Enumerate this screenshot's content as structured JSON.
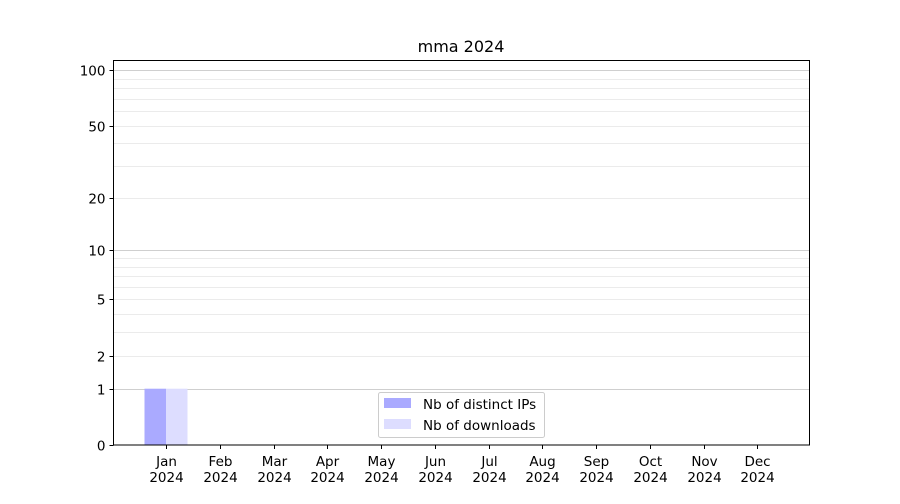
{
  "chart_data": {
    "type": "bar",
    "title": "mma 2024",
    "xlabel": "",
    "ylabel": "",
    "yscale": "log(1+y)",
    "ylim": [
      0,
      113
    ],
    "yticks": [
      0,
      1,
      2,
      5,
      10,
      20,
      50,
      100
    ],
    "ytick_labels": [
      "0",
      "1",
      "2",
      "5",
      "10",
      "20",
      "50",
      "100"
    ],
    "grid": true,
    "legend_position": "lower-center",
    "categories": [
      "Jan\n2024",
      "Feb\n2024",
      "Mar\n2024",
      "Apr\n2024",
      "May\n2024",
      "Jun\n2024",
      "Jul\n2024",
      "Aug\n2024",
      "Sep\n2024",
      "Oct\n2024",
      "Nov\n2024",
      "Dec\n2024"
    ],
    "category_labels": [
      [
        "Jan",
        "2024"
      ],
      [
        "Feb",
        "2024"
      ],
      [
        "Mar",
        "2024"
      ],
      [
        "Apr",
        "2024"
      ],
      [
        "May",
        "2024"
      ],
      [
        "Jun",
        "2024"
      ],
      [
        "Jul",
        "2024"
      ],
      [
        "Aug",
        "2024"
      ],
      [
        "Sep",
        "2024"
      ],
      [
        "Oct",
        "2024"
      ],
      [
        "Nov",
        "2024"
      ],
      [
        "Dec",
        "2024"
      ]
    ],
    "series": [
      {
        "name": "Nb of distinct IPs",
        "color": "#aaaaff",
        "values": [
          1,
          0,
          0,
          0,
          0,
          0,
          0,
          0,
          0,
          0,
          0,
          0
        ]
      },
      {
        "name": "Nb of downloads",
        "color": "#ddddff",
        "values": [
          1,
          0,
          0,
          0,
          0,
          0,
          0,
          0,
          0,
          0,
          0,
          0
        ]
      }
    ]
  }
}
